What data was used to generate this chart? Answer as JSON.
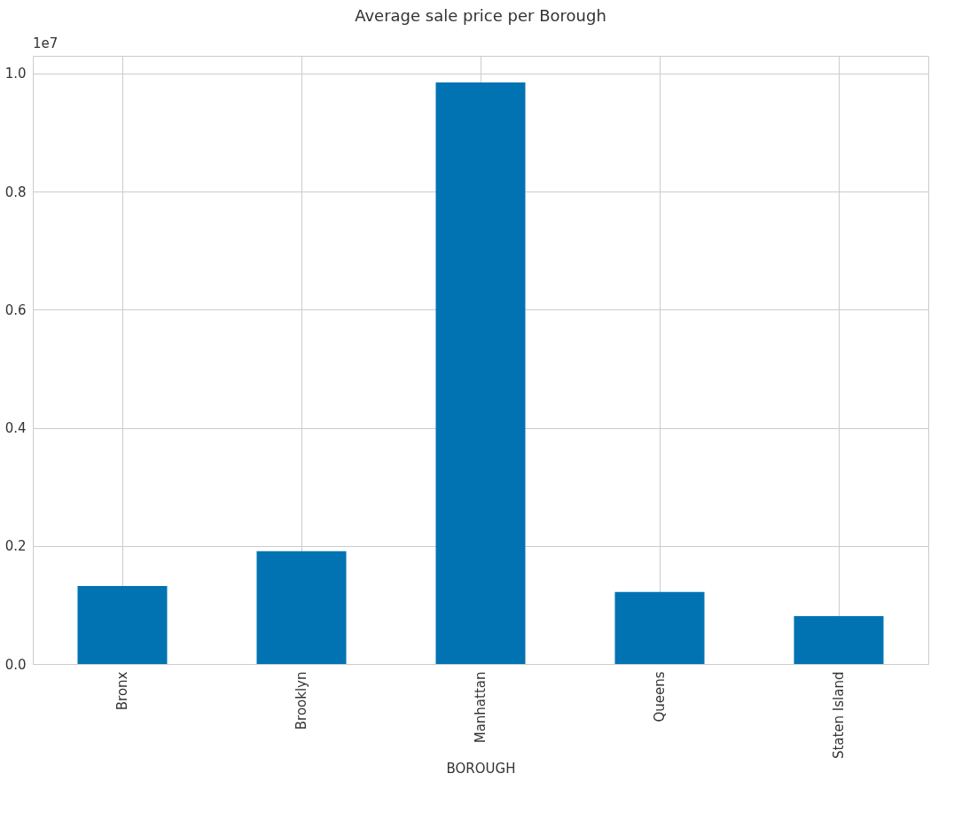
{
  "chart_data": {
    "type": "bar",
    "title": "Average sale price per Borough",
    "xlabel": "BOROUGH",
    "categories": [
      "Bronx",
      "Brooklyn",
      "Manhattan",
      "Queens",
      "Staten Island"
    ],
    "values": [
      0.132,
      0.191,
      0.985,
      0.122,
      0.081
    ],
    "color": "#0173b2",
    "ylim": [
      0,
      1.03
    ],
    "yticks": [
      {
        "value": 0,
        "label": "0.0"
      },
      0.2,
      0.4,
      0.6,
      0.8,
      {
        "value": 1,
        "label": "1.0"
      }
    ],
    "annotations": [
      "1e7"
    ],
    "grid": true
  }
}
